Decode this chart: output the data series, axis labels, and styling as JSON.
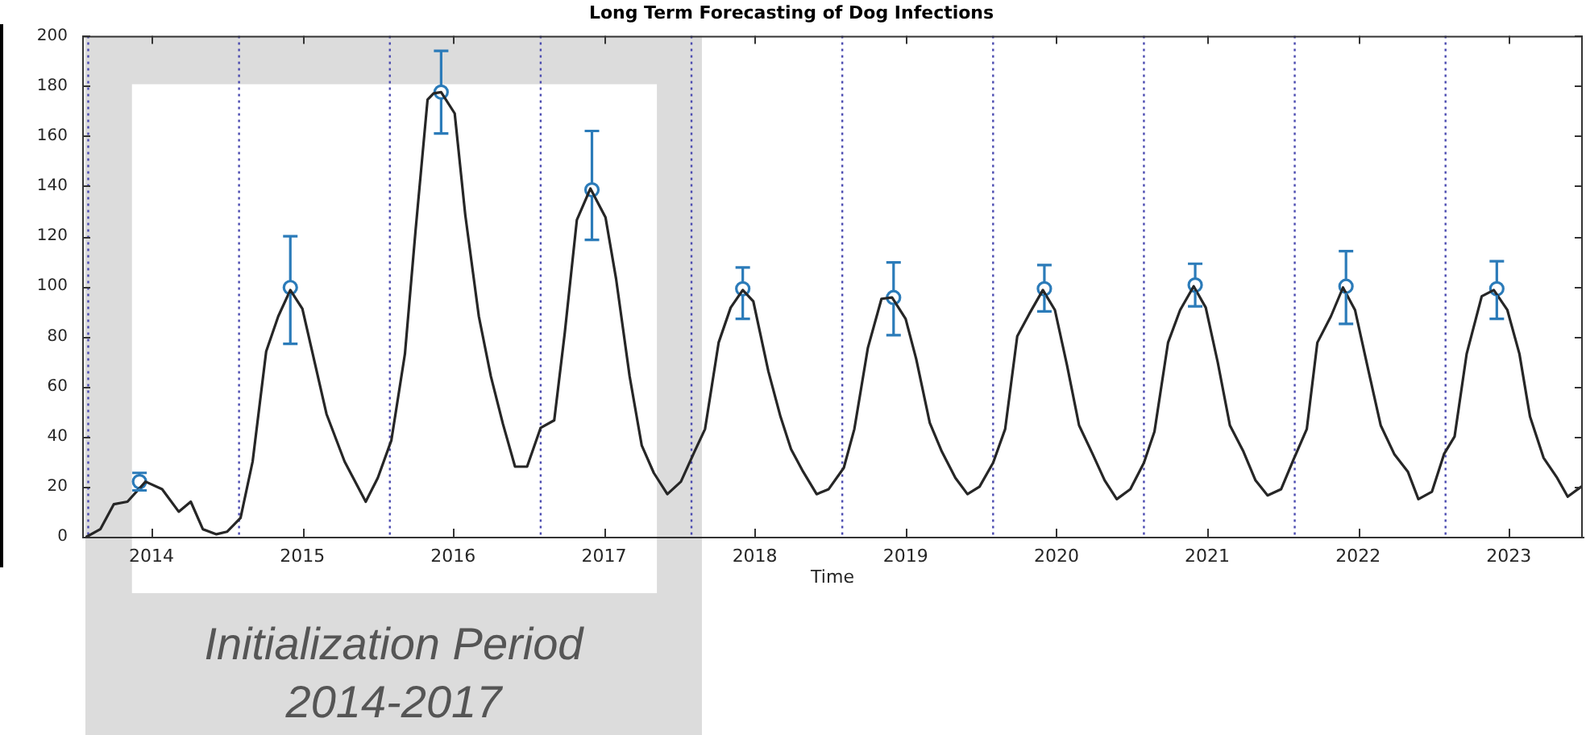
{
  "chart_data": {
    "type": "line",
    "title": "Long Term Forecasting of Dog Infections",
    "xlabel": "Time",
    "xlim": [
      2013.54,
      2023.49
    ],
    "xticks": [
      2014,
      2015,
      2016,
      2017,
      2018,
      2019,
      2020,
      2021,
      2022,
      2023
    ],
    "ylim": [
      0,
      200
    ],
    "yticks": [
      0,
      20,
      40,
      60,
      80,
      100,
      120,
      140,
      160,
      180,
      200
    ],
    "series": [
      {
        "color": "#262626",
        "marker": "none",
        "x": [
          2013.57,
          2013.66,
          2013.75,
          2013.84,
          2013.96,
          2014.07,
          2014.18,
          2014.26,
          2014.34,
          2014.43,
          2014.5,
          2014.59,
          2014.67,
          2014.76,
          2014.84,
          2014.92,
          2015.0,
          2015.16,
          2015.28,
          2015.42,
          2015.5,
          2015.59,
          2015.68,
          2015.75,
          2015.83,
          2015.87,
          2015.92,
          2016.01,
          2016.08,
          2016.17,
          2016.25,
          2016.33,
          2016.41,
          2016.49,
          2016.58,
          2016.67,
          2016.74,
          2016.82,
          2016.91,
          2017.01,
          2017.08,
          2017.17,
          2017.25,
          2017.33,
          2017.42,
          2017.51,
          2017.6,
          2017.67,
          2017.76,
          2017.84,
          2017.92,
          2017.99,
          2018.09,
          2018.17,
          2018.24,
          2018.32,
          2018.41,
          2018.49,
          2018.59,
          2018.66,
          2018.75,
          2018.84,
          2018.91,
          2019.0,
          2019.07,
          2019.16,
          2019.24,
          2019.33,
          2019.41,
          2019.49,
          2019.58,
          2019.66,
          2019.74,
          2019.82,
          2019.91,
          2019.99,
          2020.07,
          2020.15,
          2020.24,
          2020.32,
          2020.4,
          2020.49,
          2020.58,
          2020.65,
          2020.74,
          2020.82,
          2020.91,
          2020.99,
          2021.07,
          2021.15,
          2021.24,
          2021.32,
          2021.4,
          2021.49,
          2021.57,
          2021.66,
          2021.73,
          2021.82,
          2021.9,
          2021.98,
          2022.07,
          2022.15,
          2022.24,
          2022.33,
          2022.4,
          2022.49,
          2022.57,
          2022.64,
          2022.72,
          2022.82,
          2022.9,
          2022.99,
          2023.07,
          2023.14,
          2023.23,
          2023.32,
          2023.39,
          2023.48
        ],
        "values": [
          0,
          3,
          13,
          14,
          22,
          19,
          10,
          14,
          3,
          1,
          2,
          7.5,
          30,
          74,
          88,
          98.5,
          91,
          49,
          30,
          14,
          23.5,
          38.5,
          73,
          122,
          174.5,
          177,
          177.5,
          169,
          128.5,
          88,
          64,
          45,
          28,
          28,
          43.5,
          46.5,
          81.5,
          126.5,
          139,
          127.5,
          103,
          64,
          36.5,
          25.5,
          17,
          22,
          34,
          43,
          77.5,
          91.5,
          98.5,
          94,
          66,
          48,
          35,
          26,
          17,
          19,
          27.5,
          43,
          75.5,
          95,
          95.5,
          87,
          71,
          45.5,
          34,
          23.5,
          17,
          20,
          29.5,
          43,
          80,
          89,
          98.5,
          90.5,
          68.5,
          44.5,
          33,
          22.5,
          15,
          19,
          29.5,
          42,
          77.5,
          90.5,
          100,
          91.5,
          69.5,
          44.5,
          34,
          22.5,
          16.5,
          19,
          30.5,
          43,
          77.5,
          88,
          99.5,
          90.5,
          66,
          44.5,
          33,
          26,
          15,
          18,
          33,
          40,
          73,
          96,
          98.5,
          90.5,
          73,
          48,
          31.5,
          23.5,
          16,
          20
        ]
      },
      {
        "type": "scatter",
        "color": "#2b7bb9",
        "marker": "circle",
        "x": [
          2013.92,
          2014.92,
          2015.92,
          2016.92,
          2017.92,
          2018.92,
          2019.92,
          2020.92,
          2021.92,
          2022.92
        ],
        "values": [
          22,
          99.5,
          177.5,
          138.5,
          99,
          95.5,
          99,
          100.5,
          100,
          99
        ],
        "errors": [
          [
            18.5,
            25.5
          ],
          [
            77,
            120
          ],
          [
            161,
            194
          ],
          [
            118.5,
            162
          ],
          [
            87,
            107.5
          ],
          [
            80.5,
            109.5
          ],
          [
            90,
            108.5
          ],
          [
            92,
            109
          ],
          [
            85,
            114
          ],
          [
            87,
            110
          ]
        ]
      }
    ],
    "ref_lines": [
      {
        "axis": "x",
        "value": 2013.58,
        "color": "#4b4bb0",
        "line_style": "dotted"
      },
      {
        "axis": "x",
        "value": 2014.58,
        "color": "#4b4bb0",
        "line_style": "dotted"
      },
      {
        "axis": "x",
        "value": 2015.58,
        "color": "#4b4bb0",
        "line_style": "dotted"
      },
      {
        "axis": "x",
        "value": 2016.58,
        "color": "#4b4bb0",
        "line_style": "dotted"
      },
      {
        "axis": "x",
        "value": 2017.58,
        "color": "#4b4bb0",
        "line_style": "dotted"
      },
      {
        "axis": "x",
        "value": 2018.58,
        "color": "#4b4bb0",
        "line_style": "dotted"
      },
      {
        "axis": "x",
        "value": 2019.58,
        "color": "#4b4bb0",
        "line_style": "dotted"
      },
      {
        "axis": "x",
        "value": 2020.58,
        "color": "#4b4bb0",
        "line_style": "dotted"
      },
      {
        "axis": "x",
        "value": 2021.58,
        "color": "#4b4bb0",
        "line_style": "dotted"
      },
      {
        "axis": "x",
        "value": 2022.58,
        "color": "#4b4bb0",
        "line_style": "dotted"
      }
    ],
    "bands": [
      {
        "axis": "x",
        "from": 2013.56,
        "to": 2017.65,
        "label": "Initialization Period\n2014-2017",
        "color": "#dcdcdc"
      }
    ]
  }
}
